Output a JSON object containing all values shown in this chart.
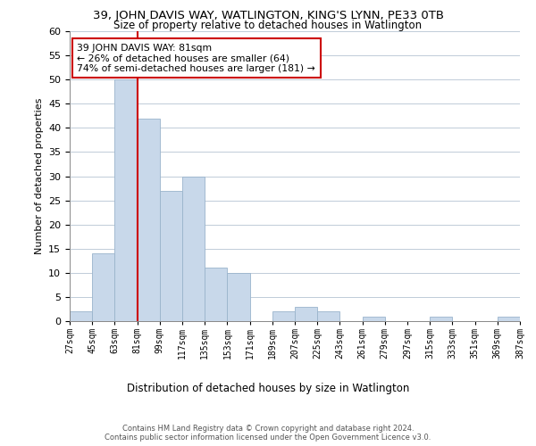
{
  "title": "39, JOHN DAVIS WAY, WATLINGTON, KING'S LYNN, PE33 0TB",
  "subtitle": "Size of property relative to detached houses in Watlington",
  "xlabel": "Distribution of detached houses by size in Watlington",
  "ylabel": "Number of detached properties",
  "bar_edges": [
    27,
    45,
    63,
    81,
    99,
    117,
    135,
    153,
    171,
    189,
    207,
    225,
    243,
    261,
    279,
    297,
    315,
    333,
    351,
    369,
    387
  ],
  "bar_heights": [
    2,
    14,
    50,
    42,
    27,
    30,
    11,
    10,
    0,
    2,
    3,
    2,
    0,
    1,
    0,
    0,
    1,
    0,
    0,
    1
  ],
  "bar_color": "#c8d8ea",
  "bar_edge_color": "#9ab4cc",
  "vline_x": 81,
  "vline_color": "#cc0000",
  "ylim": [
    0,
    60
  ],
  "yticks": [
    0,
    5,
    10,
    15,
    20,
    25,
    30,
    35,
    40,
    45,
    50,
    55,
    60
  ],
  "ann_line1": "39 JOHN DAVIS WAY: 81sqm",
  "ann_line2": "← 26% of detached houses are smaller (64)",
  "ann_line3": "74% of semi-detached houses are larger (181) →",
  "footer_line1": "Contains HM Land Registry data © Crown copyright and database right 2024.",
  "footer_line2": "Contains public sector information licensed under the Open Government Licence v3.0.",
  "tick_labels": [
    "27sqm",
    "45sqm",
    "63sqm",
    "81sqm",
    "99sqm",
    "117sqm",
    "135sqm",
    "153sqm",
    "171sqm",
    "189sqm",
    "207sqm",
    "225sqm",
    "243sqm",
    "261sqm",
    "279sqm",
    "297sqm",
    "315sqm",
    "333sqm",
    "351sqm",
    "369sqm",
    "387sqm"
  ],
  "background_color": "#ffffff",
  "grid_color": "#c0ccd8"
}
